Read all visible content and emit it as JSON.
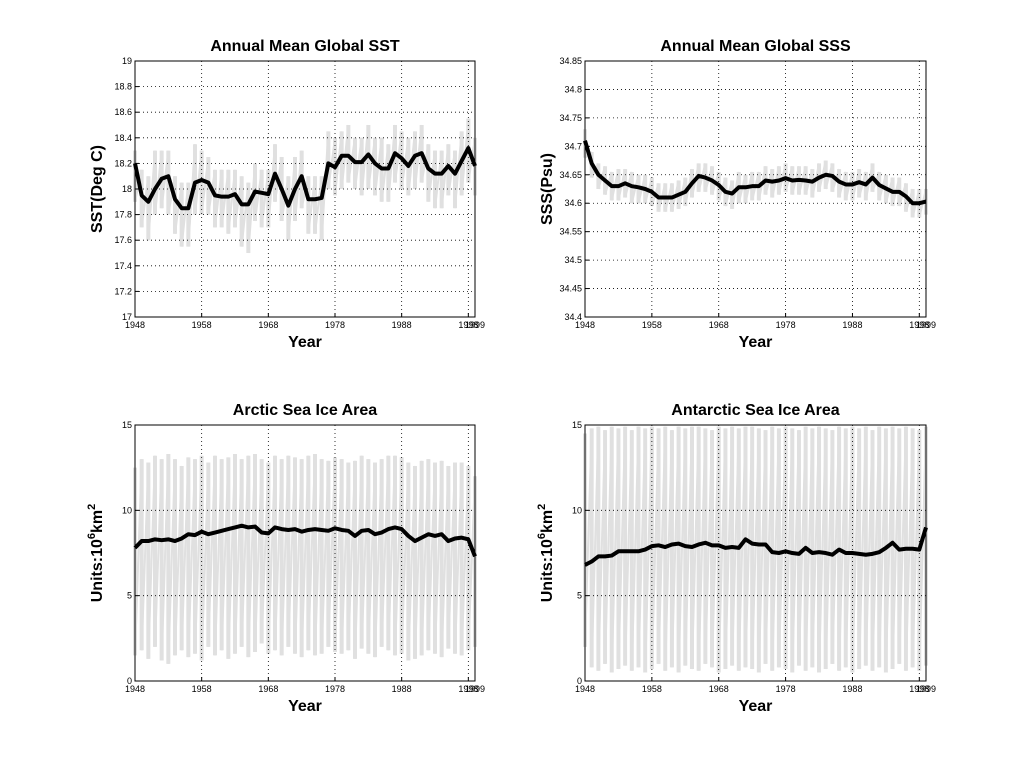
{
  "chart_data": [
    {
      "type": "line",
      "title": "Annual Mean Global SST",
      "xlabel": "Year",
      "ylabel": "SST(Deg C)",
      "x": [
        1948,
        1949,
        1950,
        1951,
        1952,
        1953,
        1954,
        1955,
        1956,
        1957,
        1958,
        1959,
        1960,
        1961,
        1962,
        1963,
        1964,
        1965,
        1966,
        1967,
        1968,
        1969,
        1970,
        1971,
        1972,
        1973,
        1974,
        1975,
        1976,
        1977,
        1978,
        1979,
        1980,
        1981,
        1982,
        1983,
        1984,
        1985,
        1986,
        1987,
        1988,
        1989,
        1990,
        1991,
        1992,
        1993,
        1994,
        1995,
        1996,
        1997,
        1998,
        1999
      ],
      "xlim": [
        1948,
        1999
      ],
      "xticks": [
        1948,
        1958,
        1968,
        1978,
        1988,
        1998,
        1999
      ],
      "ylim": [
        17,
        19
      ],
      "yticks": [
        17,
        17.2,
        17.4,
        17.6,
        17.8,
        18,
        18.2,
        18.4,
        18.6,
        18.8,
        19
      ],
      "grid": true,
      "series": [
        {
          "color": "#e0e0e0",
          "values": [
            18.3,
            18.15,
            18.1,
            18.3,
            18.3,
            18.3,
            18.1,
            18.05,
            18.05,
            18.35,
            18.3,
            18.25,
            18.15,
            18.15,
            18.15,
            18.15,
            18.1,
            18.05,
            18.2,
            18.15,
            18.15,
            18.35,
            18.25,
            18.1,
            18.25,
            18.3,
            18.1,
            18.1,
            18.1,
            18.45,
            18.4,
            18.45,
            18.5,
            18.4,
            18.4,
            18.5,
            18.4,
            18.4,
            18.35,
            18.5,
            18.45,
            18.4,
            18.45,
            18.5,
            18.35,
            18.3,
            18.3,
            18.35,
            18.3,
            18.45,
            18.55,
            18.4
          ]
        },
        {
          "color": "#e0e0e0",
          "values": [
            17.9,
            17.7,
            17.6,
            17.8,
            17.85,
            17.8,
            17.65,
            17.55,
            17.55,
            17.8,
            17.8,
            17.8,
            17.7,
            17.7,
            17.65,
            17.7,
            17.55,
            17.5,
            17.75,
            17.7,
            17.7,
            17.9,
            17.75,
            17.6,
            17.75,
            17.85,
            17.65,
            17.65,
            17.6,
            18.0,
            17.95,
            18.0,
            18.05,
            18.0,
            17.95,
            18.0,
            17.95,
            17.9,
            17.9,
            18.05,
            18.0,
            17.95,
            18.0,
            18.05,
            17.9,
            17.85,
            17.85,
            17.95,
            17.85,
            17.95,
            18.05,
            17.95
          ]
        },
        {
          "color": "#000000",
          "values": [
            18.2,
            17.95,
            17.9,
            18.0,
            18.08,
            18.1,
            17.92,
            17.85,
            17.85,
            18.05,
            18.07,
            18.05,
            17.95,
            17.94,
            17.94,
            17.96,
            17.88,
            17.88,
            17.98,
            17.97,
            17.96,
            18.12,
            18.0,
            17.87,
            18.0,
            18.1,
            17.92,
            17.92,
            17.93,
            18.2,
            18.17,
            18.26,
            18.26,
            18.21,
            18.21,
            18.27,
            18.2,
            18.16,
            18.16,
            18.28,
            18.24,
            18.18,
            18.26,
            18.28,
            18.16,
            18.12,
            18.12,
            18.18,
            18.12,
            18.22,
            18.32,
            18.18
          ]
        }
      ]
    },
    {
      "type": "line",
      "title": "Annual Mean Global SSS",
      "xlabel": "Year",
      "ylabel": "SSS(Psu)",
      "x": [
        1948,
        1949,
        1950,
        1951,
        1952,
        1953,
        1954,
        1955,
        1956,
        1957,
        1958,
        1959,
        1960,
        1961,
        1962,
        1963,
        1964,
        1965,
        1966,
        1967,
        1968,
        1969,
        1970,
        1971,
        1972,
        1973,
        1974,
        1975,
        1976,
        1977,
        1978,
        1979,
        1980,
        1981,
        1982,
        1983,
        1984,
        1985,
        1986,
        1987,
        1988,
        1989,
        1990,
        1991,
        1992,
        1993,
        1994,
        1995,
        1996,
        1997,
        1998,
        1999
      ],
      "xlim": [
        1948,
        1999
      ],
      "xticks": [
        1948,
        1958,
        1968,
        1978,
        1988,
        1998,
        1999
      ],
      "ylim": [
        34.4,
        34.85
      ],
      "yticks": [
        34.4,
        34.45,
        34.5,
        34.55,
        34.6,
        34.65,
        34.7,
        34.75,
        34.8,
        34.85
      ],
      "grid": true,
      "series": [
        {
          "color": "#e0e0e0",
          "values": [
            34.73,
            34.69,
            34.67,
            34.665,
            34.655,
            34.66,
            34.66,
            34.655,
            34.65,
            34.65,
            34.645,
            34.635,
            34.635,
            34.635,
            34.64,
            34.645,
            34.66,
            34.67,
            34.67,
            34.665,
            34.655,
            34.645,
            34.64,
            34.655,
            34.65,
            34.655,
            34.655,
            34.665,
            34.66,
            34.665,
            34.67,
            34.665,
            34.665,
            34.665,
            34.66,
            34.67,
            34.675,
            34.67,
            34.66,
            34.655,
            34.655,
            34.66,
            34.655,
            34.67,
            34.655,
            34.65,
            34.645,
            34.645,
            34.635,
            34.625,
            34.625,
            34.625
          ]
        },
        {
          "color": "#e0e0e0",
          "values": [
            34.68,
            34.645,
            34.625,
            34.615,
            34.605,
            34.605,
            34.61,
            34.6,
            34.6,
            34.6,
            34.595,
            34.585,
            34.585,
            34.585,
            34.59,
            34.595,
            34.61,
            34.62,
            34.62,
            34.615,
            34.605,
            34.595,
            34.59,
            34.6,
            34.6,
            34.605,
            34.605,
            34.615,
            34.61,
            34.615,
            34.62,
            34.615,
            34.615,
            34.615,
            34.61,
            34.62,
            34.625,
            34.62,
            34.61,
            34.605,
            34.605,
            34.61,
            34.605,
            34.62,
            34.605,
            34.6,
            34.595,
            34.595,
            34.585,
            34.575,
            34.575,
            34.58
          ]
        },
        {
          "color": "#000000",
          "values": [
            34.71,
            34.67,
            34.65,
            34.64,
            34.63,
            34.63,
            34.635,
            34.63,
            34.628,
            34.625,
            34.62,
            34.61,
            34.61,
            34.61,
            34.615,
            34.62,
            34.635,
            34.648,
            34.645,
            34.64,
            34.632,
            34.62,
            34.617,
            34.628,
            34.628,
            34.63,
            34.63,
            34.64,
            34.638,
            34.64,
            34.644,
            34.64,
            34.641,
            34.64,
            34.638,
            34.645,
            34.65,
            34.648,
            34.638,
            34.633,
            34.633,
            34.637,
            34.633,
            34.645,
            34.632,
            34.626,
            34.62,
            34.62,
            34.612,
            34.6,
            34.6,
            34.603
          ]
        }
      ]
    },
    {
      "type": "line",
      "title": "Arctic Sea Ice Area",
      "xlabel": "Year",
      "ylabel": [
        "Units:10",
        "6",
        "km",
        "2"
      ],
      "x": [
        1948,
        1949,
        1950,
        1951,
        1952,
        1953,
        1954,
        1955,
        1956,
        1957,
        1958,
        1959,
        1960,
        1961,
        1962,
        1963,
        1964,
        1965,
        1966,
        1967,
        1968,
        1969,
        1970,
        1971,
        1972,
        1973,
        1974,
        1975,
        1976,
        1977,
        1978,
        1979,
        1980,
        1981,
        1982,
        1983,
        1984,
        1985,
        1986,
        1987,
        1988,
        1989,
        1990,
        1991,
        1992,
        1993,
        1994,
        1995,
        1996,
        1997,
        1998,
        1999
      ],
      "xlim": [
        1948,
        1999
      ],
      "xticks": [
        1948,
        1958,
        1968,
        1978,
        1988,
        1998,
        1999
      ],
      "ylim": [
        0,
        15
      ],
      "yticks": [
        0,
        5,
        10,
        15
      ],
      "grid": true,
      "series": [
        {
          "color": "#e0e0e0",
          "values": [
            12.5,
            13.0,
            12.8,
            13.2,
            13.0,
            13.3,
            13.0,
            12.6,
            13.1,
            13.0,
            13.2,
            12.8,
            13.2,
            13.0,
            13.1,
            13.3,
            13.0,
            13.2,
            13.3,
            13.0,
            12.8,
            13.2,
            13.0,
            13.2,
            13.1,
            13.0,
            13.2,
            13.3,
            13.0,
            12.9,
            13.1,
            13.0,
            12.8,
            12.9,
            13.2,
            13.0,
            12.8,
            13.0,
            13.2,
            13.2,
            13.1,
            12.8,
            12.6,
            12.9,
            13.0,
            12.8,
            12.9,
            12.6,
            12.8,
            12.8,
            12.6,
            12.0
          ]
        },
        {
          "color": "#e0e0e0",
          "values": [
            1.5,
            1.8,
            1.3,
            2.0,
            1.2,
            1.0,
            1.5,
            1.8,
            1.4,
            1.6,
            1.2,
            2.0,
            1.5,
            1.8,
            1.3,
            1.6,
            2.0,
            1.4,
            1.7,
            2.2,
            1.6,
            1.8,
            1.5,
            2.0,
            1.6,
            1.4,
            1.8,
            1.5,
            1.6,
            2.0,
            1.7,
            1.6,
            1.8,
            1.3,
            1.9,
            1.6,
            1.4,
            2.0,
            1.8,
            1.5,
            1.6,
            1.2,
            1.3,
            1.5,
            1.8,
            1.6,
            1.4,
            1.9,
            1.6,
            1.5,
            1.8,
            2.0
          ]
        },
        {
          "color": "#000000",
          "values": [
            7.8,
            8.2,
            8.2,
            8.3,
            8.25,
            8.3,
            8.2,
            8.35,
            8.6,
            8.55,
            8.75,
            8.6,
            8.7,
            8.8,
            8.9,
            9.0,
            9.1,
            9.0,
            9.05,
            8.7,
            8.65,
            9.0,
            8.9,
            8.85,
            8.9,
            8.75,
            8.85,
            8.9,
            8.85,
            8.8,
            8.95,
            8.85,
            8.8,
            8.5,
            8.8,
            8.85,
            8.6,
            8.7,
            8.9,
            9.0,
            8.9,
            8.5,
            8.2,
            8.4,
            8.6,
            8.5,
            8.6,
            8.2,
            8.35,
            8.4,
            8.3,
            7.3
          ]
        }
      ]
    },
    {
      "type": "line",
      "title": "Antarctic Sea Ice Area",
      "xlabel": "Year",
      "ylabel": [
        "Units:10",
        "6",
        "km",
        "2"
      ],
      "x": [
        1948,
        1949,
        1950,
        1951,
        1952,
        1953,
        1954,
        1955,
        1956,
        1957,
        1958,
        1959,
        1960,
        1961,
        1962,
        1963,
        1964,
        1965,
        1966,
        1967,
        1968,
        1969,
        1970,
        1971,
        1972,
        1973,
        1974,
        1975,
        1976,
        1977,
        1978,
        1979,
        1980,
        1981,
        1982,
        1983,
        1984,
        1985,
        1986,
        1987,
        1988,
        1989,
        1990,
        1991,
        1992,
        1993,
        1994,
        1995,
        1996,
        1997,
        1998,
        1999
      ],
      "xlim": [
        1948,
        1999
      ],
      "xticks": [
        1948,
        1958,
        1968,
        1978,
        1988,
        1998,
        1999
      ],
      "ylim": [
        0,
        15
      ],
      "yticks": [
        0,
        5,
        10,
        15
      ],
      "grid": true,
      "series": [
        {
          "color": "#e0e0e0",
          "values": [
            14.5,
            14.8,
            14.9,
            14.7,
            14.9,
            14.8,
            14.9,
            14.7,
            14.9,
            14.8,
            14.9,
            14.8,
            14.9,
            14.7,
            14.9,
            14.8,
            14.9,
            14.9,
            14.8,
            14.7,
            14.9,
            14.8,
            14.9,
            14.8,
            14.9,
            14.9,
            14.8,
            14.7,
            14.9,
            14.8,
            14.9,
            14.8,
            14.7,
            14.9,
            14.8,
            14.9,
            14.8,
            14.7,
            14.9,
            14.8,
            14.9,
            14.8,
            14.9,
            14.7,
            14.9,
            14.8,
            14.9,
            14.8,
            14.9,
            14.8,
            14.7,
            14.9
          ]
        },
        {
          "color": "#e0e0e0",
          "values": [
            2.0,
            0.8,
            0.6,
            1.0,
            0.5,
            0.7,
            0.9,
            0.6,
            0.8,
            0.5,
            0.7,
            1.0,
            0.6,
            0.8,
            0.5,
            0.9,
            0.7,
            0.6,
            1.0,
            0.8,
            0.5,
            0.7,
            0.9,
            0.6,
            0.8,
            0.7,
            0.5,
            1.0,
            0.6,
            0.8,
            0.7,
            0.5,
            0.9,
            0.6,
            0.8,
            0.5,
            0.7,
            1.0,
            0.6,
            0.8,
            0.5,
            0.7,
            0.9,
            0.6,
            0.8,
            0.5,
            0.7,
            1.0,
            0.6,
            0.8,
            0.6,
            0.9
          ]
        },
        {
          "color": "#000000",
          "values": [
            6.8,
            7.0,
            7.3,
            7.3,
            7.35,
            7.6,
            7.6,
            7.6,
            7.6,
            7.7,
            7.9,
            7.95,
            7.85,
            8.0,
            8.05,
            7.9,
            7.85,
            8.0,
            8.1,
            7.95,
            7.95,
            7.8,
            7.85,
            7.8,
            8.3,
            8.05,
            8.0,
            8.0,
            7.55,
            7.5,
            7.6,
            7.5,
            7.45,
            7.8,
            7.5,
            7.55,
            7.5,
            7.4,
            7.7,
            7.5,
            7.5,
            7.45,
            7.4,
            7.45,
            7.55,
            7.8,
            8.1,
            7.7,
            7.75,
            7.75,
            7.7,
            9.0
          ]
        }
      ]
    }
  ]
}
